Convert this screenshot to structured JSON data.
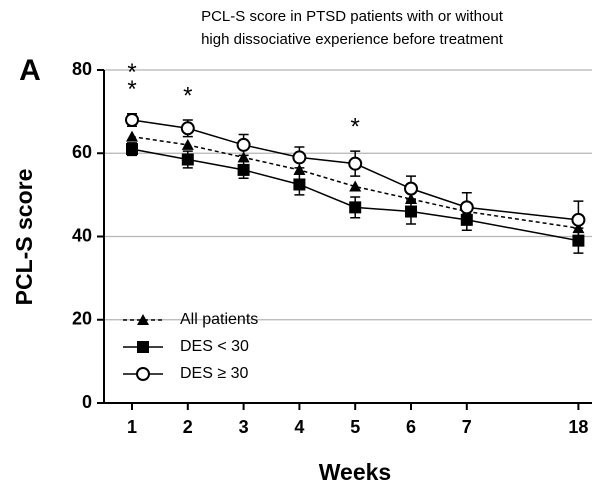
{
  "chart_data": {
    "type": "line",
    "title": [
      "PCL-S score in PTSD patients with or without",
      "high dissociative experience before treatment"
    ],
    "panel_label": "A",
    "x_label": "Weeks",
    "y_label": "PCL-S score",
    "categories": [
      "1",
      "2",
      "3",
      "4",
      "5",
      "6",
      "7",
      "18"
    ],
    "series": [
      {
        "name": "All patients",
        "color": "#000000",
        "marker": "triangle",
        "dashed": true,
        "values": [
          64,
          62,
          59,
          56,
          52,
          49,
          46,
          42
        ]
      },
      {
        "name": "DES < 30",
        "color": "#000000",
        "marker": "square",
        "dashed": false,
        "values": [
          61,
          58.5,
          56,
          52.5,
          47,
          46,
          44,
          39
        ],
        "errors": [
          1.5,
          2,
          2,
          2.5,
          2.5,
          3,
          2.5,
          3
        ]
      },
      {
        "name": "DES ≥ 30",
        "color": "#000000",
        "marker": "circle",
        "dashed": false,
        "values": [
          68,
          66,
          62,
          59,
          57.5,
          51.5,
          47,
          44
        ],
        "errors": [
          1.5,
          2,
          2.5,
          2.5,
          3,
          3,
          3.5,
          4.5
        ]
      }
    ],
    "annotations": [
      {
        "text": "*",
        "category": "1"
      },
      {
        "text": "*",
        "category": "1"
      },
      {
        "text": "*",
        "category": "2"
      },
      {
        "text": "*",
        "category": "5"
      }
    ],
    "ylim": [
      0,
      80
    ],
    "yticks": [
      0,
      20,
      40,
      60,
      80
    ],
    "grid": true,
    "legend": "lower left"
  }
}
